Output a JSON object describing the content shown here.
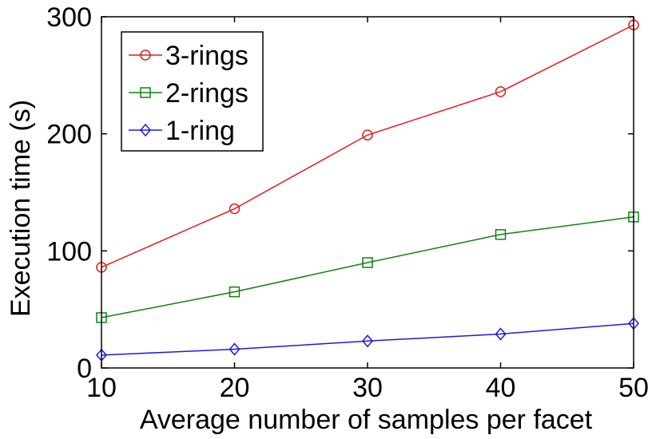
{
  "chart_data": {
    "type": "line",
    "title": "",
    "xlabel": "Average number of samples per facet",
    "ylabel": "Execution time (s)",
    "x": [
      10,
      20,
      30,
      40,
      50
    ],
    "xlim": [
      10,
      50
    ],
    "ylim": [
      0,
      300
    ],
    "xticks": [
      10,
      20,
      30,
      40,
      50
    ],
    "yticks": [
      0,
      100,
      200,
      300
    ],
    "grid": false,
    "legend_position": "top-left",
    "series": [
      {
        "name": "3-rings",
        "color": "#e41a1a",
        "marker": "circle",
        "values": [
          86,
          136,
          199,
          236,
          293
        ]
      },
      {
        "name": "2-rings",
        "color": "#118011",
        "marker": "square",
        "values": [
          43,
          65,
          90,
          114,
          129
        ]
      },
      {
        "name": "1-ring",
        "color": "#1a1ae8",
        "marker": "diamond",
        "values": [
          11,
          16,
          23,
          29,
          38
        ]
      }
    ]
  }
}
